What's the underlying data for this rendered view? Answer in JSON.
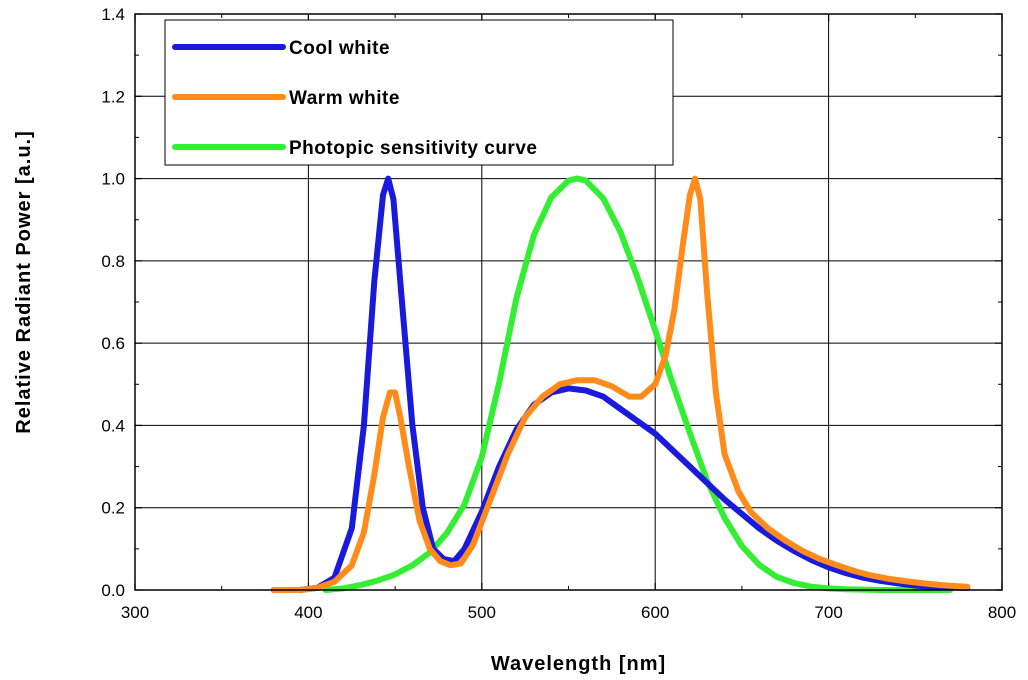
{
  "chart_data": {
    "type": "line",
    "xlabel": "Wavelength [nm]",
    "ylabel": "Relative Radiant Power [a.u.]",
    "xlim": [
      300,
      800
    ],
    "ylim": [
      0,
      1.4
    ],
    "x_ticks": [
      "300",
      "400",
      "500",
      "600",
      "700",
      "800"
    ],
    "y_ticks": [
      "0.0",
      "0.2",
      "0.4",
      "0.6",
      "0.8",
      "1.0",
      "1.2",
      "1.4"
    ],
    "grid": true,
    "legend_position": "top-left",
    "series": [
      {
        "name": "Cool white",
        "color": "#1a1adc",
        "points": [
          [
            380,
            0
          ],
          [
            395,
            0
          ],
          [
            405,
            0.005
          ],
          [
            415,
            0.03
          ],
          [
            425,
            0.15
          ],
          [
            432,
            0.4
          ],
          [
            438,
            0.75
          ],
          [
            443,
            0.96
          ],
          [
            446,
            1.0
          ],
          [
            449,
            0.95
          ],
          [
            454,
            0.7
          ],
          [
            460,
            0.4
          ],
          [
            466,
            0.2
          ],
          [
            472,
            0.1
          ],
          [
            478,
            0.075
          ],
          [
            484,
            0.07
          ],
          [
            490,
            0.1
          ],
          [
            500,
            0.19
          ],
          [
            510,
            0.3
          ],
          [
            520,
            0.39
          ],
          [
            530,
            0.45
          ],
          [
            540,
            0.48
          ],
          [
            550,
            0.49
          ],
          [
            560,
            0.485
          ],
          [
            570,
            0.47
          ],
          [
            580,
            0.44
          ],
          [
            590,
            0.41
          ],
          [
            600,
            0.38
          ],
          [
            610,
            0.34
          ],
          [
            620,
            0.3
          ],
          [
            630,
            0.26
          ],
          [
            640,
            0.22
          ],
          [
            650,
            0.185
          ],
          [
            660,
            0.15
          ],
          [
            670,
            0.12
          ],
          [
            680,
            0.095
          ],
          [
            690,
            0.073
          ],
          [
            700,
            0.055
          ],
          [
            710,
            0.041
          ],
          [
            720,
            0.03
          ],
          [
            730,
            0.022
          ],
          [
            740,
            0.016
          ],
          [
            750,
            0.011
          ],
          [
            760,
            0.008
          ],
          [
            770,
            0.006
          ],
          [
            780,
            0.005
          ]
        ]
      },
      {
        "name": "Warm white",
        "color": "#ff8c1a",
        "points": [
          [
            380,
            0
          ],
          [
            395,
            0
          ],
          [
            405,
            0.005
          ],
          [
            415,
            0.02
          ],
          [
            425,
            0.06
          ],
          [
            432,
            0.14
          ],
          [
            438,
            0.28
          ],
          [
            443,
            0.42
          ],
          [
            447,
            0.48
          ],
          [
            450,
            0.48
          ],
          [
            453,
            0.42
          ],
          [
            458,
            0.3
          ],
          [
            464,
            0.17
          ],
          [
            470,
            0.1
          ],
          [
            476,
            0.07
          ],
          [
            482,
            0.06
          ],
          [
            488,
            0.065
          ],
          [
            495,
            0.11
          ],
          [
            505,
            0.22
          ],
          [
            515,
            0.33
          ],
          [
            525,
            0.42
          ],
          [
            535,
            0.47
          ],
          [
            545,
            0.5
          ],
          [
            555,
            0.51
          ],
          [
            565,
            0.51
          ],
          [
            575,
            0.495
          ],
          [
            585,
            0.47
          ],
          [
            592,
            0.47
          ],
          [
            600,
            0.5
          ],
          [
            606,
            0.57
          ],
          [
            611,
            0.68
          ],
          [
            616,
            0.84
          ],
          [
            620,
            0.96
          ],
          [
            623,
            1.0
          ],
          [
            626,
            0.95
          ],
          [
            630,
            0.72
          ],
          [
            635,
            0.48
          ],
          [
            640,
            0.33
          ],
          [
            648,
            0.24
          ],
          [
            655,
            0.19
          ],
          [
            665,
            0.15
          ],
          [
            675,
            0.12
          ],
          [
            685,
            0.095
          ],
          [
            695,
            0.075
          ],
          [
            705,
            0.06
          ],
          [
            715,
            0.046
          ],
          [
            725,
            0.035
          ],
          [
            735,
            0.027
          ],
          [
            745,
            0.021
          ],
          [
            755,
            0.016
          ],
          [
            765,
            0.012
          ],
          [
            775,
            0.009
          ],
          [
            780,
            0.008
          ]
        ]
      },
      {
        "name": "Photopic sensitivity curve",
        "color": "#33ee33",
        "points": [
          [
            410,
            0
          ],
          [
            420,
            0.004
          ],
          [
            430,
            0.012
          ],
          [
            440,
            0.023
          ],
          [
            450,
            0.038
          ],
          [
            460,
            0.06
          ],
          [
            470,
            0.091
          ],
          [
            480,
            0.139
          ],
          [
            490,
            0.208
          ],
          [
            500,
            0.323
          ],
          [
            510,
            0.503
          ],
          [
            520,
            0.71
          ],
          [
            530,
            0.862
          ],
          [
            540,
            0.954
          ],
          [
            550,
            0.995
          ],
          [
            555,
            1.0
          ],
          [
            560,
            0.995
          ],
          [
            570,
            0.952
          ],
          [
            580,
            0.87
          ],
          [
            590,
            0.757
          ],
          [
            600,
            0.631
          ],
          [
            610,
            0.503
          ],
          [
            620,
            0.381
          ],
          [
            630,
            0.265
          ],
          [
            640,
            0.175
          ],
          [
            650,
            0.107
          ],
          [
            660,
            0.061
          ],
          [
            670,
            0.032
          ],
          [
            680,
            0.017
          ],
          [
            690,
            0.008
          ],
          [
            700,
            0.004
          ],
          [
            710,
            0.002
          ],
          [
            720,
            0.001
          ],
          [
            730,
            0
          ],
          [
            750,
            0
          ],
          [
            770,
            0
          ]
        ]
      }
    ]
  }
}
